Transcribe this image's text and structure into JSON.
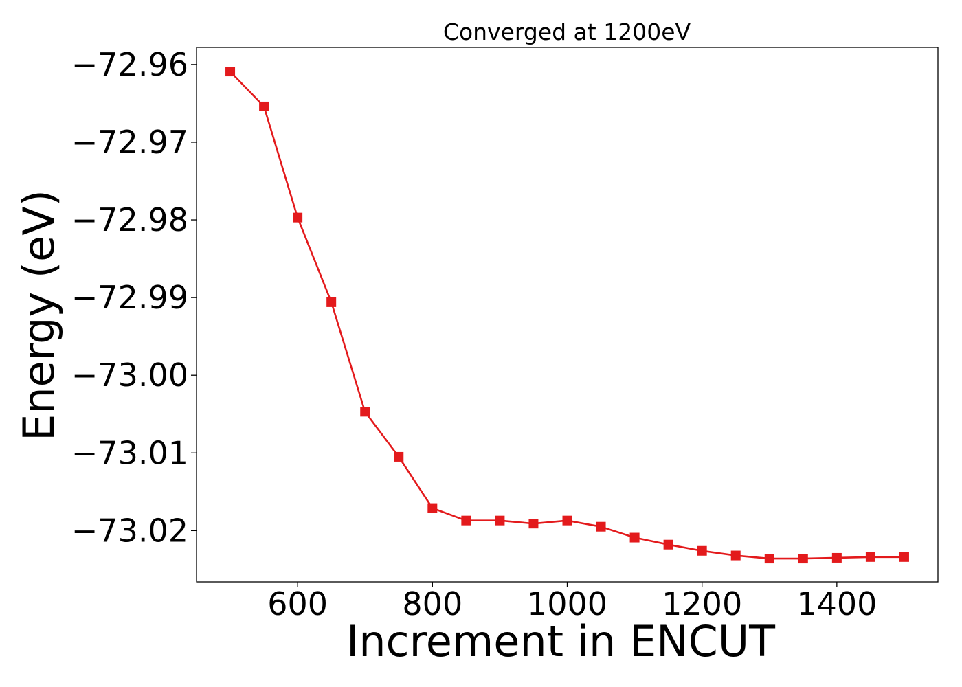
{
  "chart_data": {
    "type": "line",
    "title": "Converged at 1200eV",
    "xlabel": "Increment in ENCUT",
    "ylabel": "Energy (eV)",
    "xlim": [
      450,
      1550
    ],
    "ylim": [
      -73.0266,
      -72.9578
    ],
    "x_ticks": [
      600,
      800,
      1000,
      1200,
      1400
    ],
    "y_ticks": [
      -72.96,
      -72.97,
      -72.98,
      -72.99,
      -73.0,
      -73.01,
      -73.02
    ],
    "y_tick_labels": [
      "−72.96",
      "−72.97",
      "−72.98",
      "−72.99",
      "−73.00",
      "−73.01",
      "−73.02"
    ],
    "grid": false,
    "legend": "none",
    "series": [
      {
        "color": "#e31a1c",
        "marker": "square",
        "x": [
          500,
          550,
          600,
          650,
          700,
          750,
          800,
          850,
          900,
          950,
          1000,
          1050,
          1100,
          1150,
          1200,
          1250,
          1300,
          1350,
          1400,
          1450,
          1500
        ],
        "y": [
          -72.9609,
          -72.9654,
          -72.9797,
          -72.9906,
          -73.0047,
          -73.0105,
          -73.0171,
          -73.0187,
          -73.0187,
          -73.0191,
          -73.0187,
          -73.0195,
          -73.0209,
          -73.0218,
          -73.0226,
          -73.0232,
          -73.0236,
          -73.0236,
          -73.0235,
          -73.0234,
          -73.0234
        ]
      }
    ]
  }
}
